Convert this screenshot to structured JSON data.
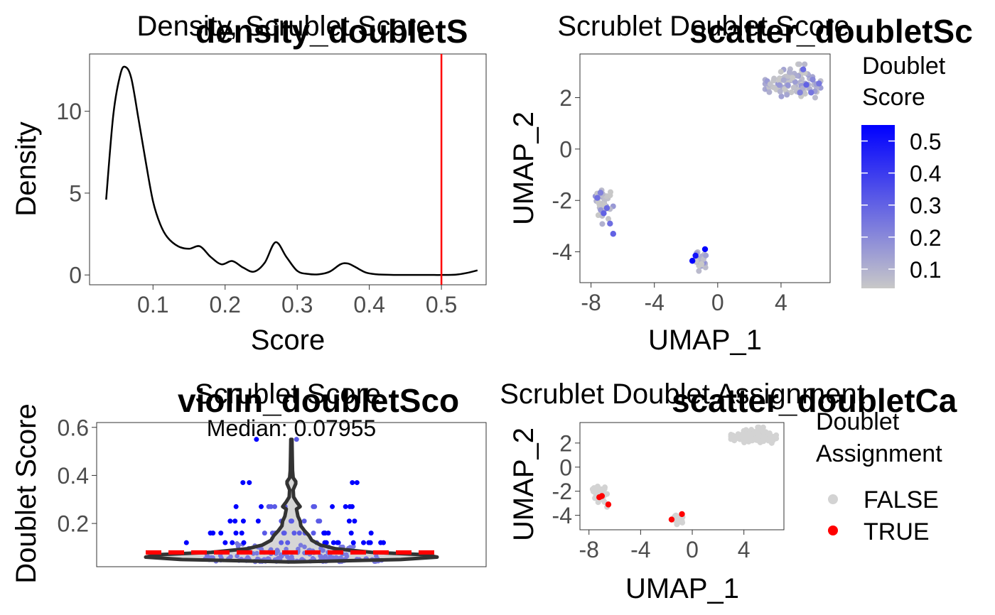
{
  "colors": {
    "line": "#000000",
    "threshold": "#ff0000",
    "gradient_low": "#c8c8c8",
    "gradient_high": "#0000ff",
    "false_point": "#d3d3d3",
    "true_point": "#ff0000",
    "violin_stroke": "#333333",
    "violin_fill": "#d6d6d6",
    "tick_text": "#4d4d4d"
  },
  "chart_data": [
    {
      "id": "density",
      "type": "line",
      "tag": "density_doubletS",
      "title": "Density, Scrublet Score",
      "xlabel": "Score",
      "ylabel": "Density",
      "xlim": [
        0.012,
        0.562
      ],
      "ylim": [
        -0.6,
        13.5
      ],
      "xticks": [
        "0.1",
        "0.2",
        "0.3",
        "0.4",
        "0.5"
      ],
      "xtick_values": [
        0.1,
        0.2,
        0.3,
        0.4,
        0.5
      ],
      "yticks": [
        "0",
        "5",
        "10"
      ],
      "ytick_values": [
        0,
        5,
        10
      ],
      "threshold": 0.5,
      "x": [
        0.035,
        0.045,
        0.055,
        0.062,
        0.07,
        0.08,
        0.09,
        0.1,
        0.11,
        0.12,
        0.135,
        0.15,
        0.165,
        0.18,
        0.195,
        0.21,
        0.225,
        0.24,
        0.255,
        0.27,
        0.285,
        0.3,
        0.315,
        0.33,
        0.345,
        0.36,
        0.37,
        0.38,
        0.395,
        0.41,
        0.43,
        0.45,
        0.47,
        0.49,
        0.5,
        0.52,
        0.535,
        0.55
      ],
      "y": [
        4.6,
        9.8,
        12.3,
        12.7,
        12.0,
        9.5,
        6.9,
        4.5,
        3.1,
        2.3,
        1.75,
        1.6,
        1.75,
        1.1,
        0.65,
        0.85,
        0.45,
        0.2,
        0.75,
        2.0,
        1.1,
        0.25,
        0.06,
        0.04,
        0.2,
        0.65,
        0.7,
        0.5,
        0.15,
        0.04,
        0.01,
        0.0,
        0.0,
        0.0,
        0.0,
        0.02,
        0.12,
        0.28
      ]
    },
    {
      "id": "scatter_score",
      "type": "scatter",
      "tag": "scatter_doubletSc",
      "title": "Scrublet Doublet Score",
      "xlabel": "UMAP_1",
      "ylabel": "UMAP_2",
      "xlim": [
        -8.7,
        7.1
      ],
      "ylim": [
        -5.2,
        3.7
      ],
      "xticks": [
        "-8",
        "-4",
        "0",
        "4"
      ],
      "xtick_values": [
        -8,
        -4,
        0,
        4
      ],
      "yticks": [
        "-4",
        "-2",
        "0",
        "2"
      ],
      "ytick_values": [
        -4,
        -2,
        0,
        2
      ],
      "legend": {
        "title_lines": [
          "Doublet",
          "Score"
        ],
        "labels": [
          "0.5",
          "0.4",
          "0.3",
          "0.2",
          "0.1"
        ],
        "values": [
          0.5,
          0.4,
          0.3,
          0.2,
          0.1
        ],
        "min": 0.04,
        "max": 0.55
      },
      "clusters": [
        {
          "cx": 4.7,
          "cy": 2.6,
          "sx": 0.9,
          "sy": 0.3,
          "n": 95,
          "xmin": 3.0,
          "xmax": 6.5,
          "ymin": 1.6,
          "ymax": 3.3
        },
        {
          "cx": -7.2,
          "cy": -2.1,
          "sx": 0.3,
          "sy": 0.4,
          "n": 40,
          "xmin": -8.0,
          "xmax": -6.3,
          "ymin": -3.6,
          "ymax": -0.8
        },
        {
          "cx": -1.05,
          "cy": -4.3,
          "sx": 0.2,
          "sy": 0.22,
          "n": 32,
          "xmin": -1.6,
          "xmax": -0.6,
          "ymin": -4.8,
          "ymax": -3.8
        }
      ],
      "highlighted_points": [
        {
          "x": -0.8,
          "y": -3.9,
          "score": 0.55
        },
        {
          "x": -1.6,
          "y": -4.35,
          "score": 0.55
        },
        {
          "x": -1.4,
          "y": -4.15,
          "score": 0.5
        },
        {
          "x": -7.2,
          "y": -2.5,
          "score": 0.3
        },
        {
          "x": -7.0,
          "y": -2.3,
          "score": 0.28
        },
        {
          "x": -7.6,
          "y": -1.9,
          "score": 0.27
        },
        {
          "x": -6.8,
          "y": -2.9,
          "score": 0.27
        },
        {
          "x": -6.6,
          "y": -3.3,
          "score": 0.3
        },
        {
          "x": -7.4,
          "y": -1.7,
          "score": 0.22
        },
        {
          "x": 5.6,
          "y": 2.5,
          "score": 0.3
        },
        {
          "x": 5.4,
          "y": 3.1,
          "score": 0.28
        },
        {
          "x": 6.4,
          "y": 2.55,
          "score": 0.25
        },
        {
          "x": 5.9,
          "y": 2.2,
          "score": 0.25
        },
        {
          "x": 5.2,
          "y": 2.2,
          "score": 0.22
        },
        {
          "x": 6.0,
          "y": 2.7,
          "score": 0.2
        }
      ]
    },
    {
      "id": "violin",
      "type": "violin",
      "tag": "violin_doubletSco",
      "title": "Scrublet Score",
      "subtitle": "Median: 0.07955",
      "ylabel": "Doublet Score",
      "ylim": [
        0.02,
        0.62
      ],
      "yticks": [
        "0.2",
        "0.4",
        "0.6"
      ],
      "ytick_values": [
        0.2,
        0.4,
        0.6
      ],
      "median": 0.07955,
      "max_value": 0.55,
      "outlier_groups": [
        {
          "value": 0.55,
          "n": 2
        },
        {
          "value": 0.37,
          "n": 4
        },
        {
          "value": 0.27,
          "n": 12
        },
        {
          "value": 0.21,
          "n": 12
        },
        {
          "value": 0.16,
          "n": 20
        },
        {
          "value": 0.12,
          "n": 18
        }
      ]
    },
    {
      "id": "scatter_call",
      "type": "scatter",
      "tag": "scatter_doubletCa",
      "title": "Scrublet Doublet Assignment",
      "xlabel": "UMAP_1",
      "ylabel": "UMAP_2",
      "xlim": [
        -8.7,
        7.1
      ],
      "ylim": [
        -5.2,
        3.7
      ],
      "xticks": [
        "-8",
        "-4",
        "0",
        "4"
      ],
      "xtick_values": [
        -8,
        -4,
        0,
        4
      ],
      "yticks": [
        "-4",
        "-2",
        "0",
        "2"
      ],
      "ytick_values": [
        -4,
        -2,
        0,
        2
      ],
      "legend": {
        "title_lines": [
          "Doublet",
          "Assignment"
        ],
        "entries": [
          "FALSE",
          "TRUE"
        ]
      },
      "true_points": [
        {
          "x": -0.8,
          "y": -3.9
        },
        {
          "x": -1.6,
          "y": -4.35
        },
        {
          "x": -7.2,
          "y": -2.5
        },
        {
          "x": -7.0,
          "y": -2.4
        },
        {
          "x": -6.5,
          "y": -3.1
        }
      ]
    }
  ]
}
